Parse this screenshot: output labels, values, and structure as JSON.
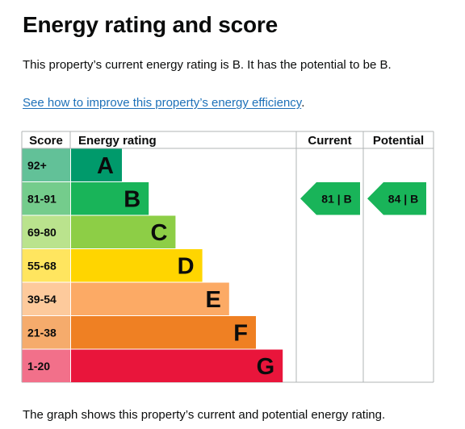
{
  "page": {
    "title": "Energy rating and score",
    "intro": "This property’s current energy rating is B. It has the potential to be B.",
    "link_text": "See how to improve this property’s energy efficiency",
    "link_suffix": ".",
    "caption": "The graph shows this property’s current and potential energy rating."
  },
  "chart_data": {
    "type": "bar",
    "headers": {
      "score": "Score",
      "rating": "Energy rating",
      "current": "Current",
      "potential": "Potential"
    },
    "bands": [
      {
        "letter": "A",
        "range": "92+",
        "color": "#009a6b",
        "range_color": "#62c198"
      },
      {
        "letter": "B",
        "range": "81-91",
        "color": "#19b459",
        "range_color": "#74cc8c"
      },
      {
        "letter": "C",
        "range": "69-80",
        "color": "#8dce46",
        "range_color": "#bae38d"
      },
      {
        "letter": "D",
        "range": "55-68",
        "color": "#ffd500",
        "range_color": "#ffe55f"
      },
      {
        "letter": "E",
        "range": "39-54",
        "color": "#fcaa65",
        "range_color": "#fdca9c"
      },
      {
        "letter": "F",
        "range": "21-38",
        "color": "#ef8023",
        "range_color": "#f5ab6c"
      },
      {
        "letter": "G",
        "range": "1-20",
        "color": "#e9153b",
        "range_color": "#f2708a"
      }
    ],
    "current": {
      "score": 81,
      "band": "B",
      "label": "81 | B",
      "color": "#19b459"
    },
    "potential": {
      "score": 84,
      "band": "B",
      "label": "84 | B",
      "color": "#19b459"
    }
  }
}
